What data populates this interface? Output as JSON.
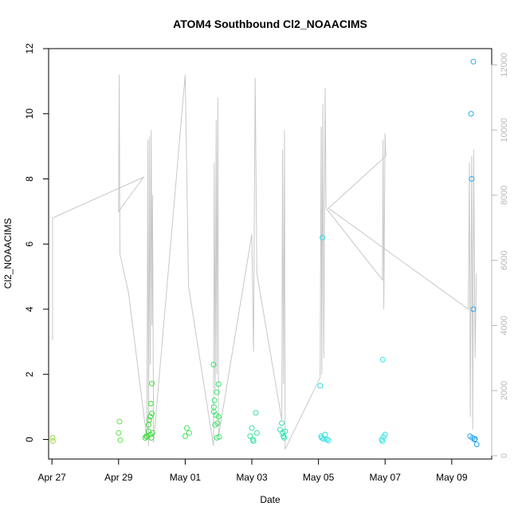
{
  "chart_data": {
    "type": "scatter",
    "title": "ATOM4 Southbound Cl2_NOAACIMS",
    "xlabel": "Date",
    "ylabel": "Cl2_NOAACIMS",
    "xlim": [
      -0.1,
      13.2
    ],
    "ylim": [
      -0.6,
      12.0
    ],
    "x_ticks": [
      {
        "label": "Apr 27",
        "value": 0
      },
      {
        "label": "Apr 29",
        "value": 2
      },
      {
        "label": "May 01",
        "value": 4
      },
      {
        "label": "May 03",
        "value": 6
      },
      {
        "label": "May 05",
        "value": 8
      },
      {
        "label": "May 07",
        "value": 10
      },
      {
        "label": "May 09",
        "value": 12
      }
    ],
    "y_ticks": [
      {
        "label": "0",
        "value": 0
      },
      {
        "label": "2",
        "value": 2
      },
      {
        "label": "4",
        "value": 4
      },
      {
        "label": "6",
        "value": 6
      },
      {
        "label": "8",
        "value": 8
      },
      {
        "label": "10",
        "value": 10
      },
      {
        "label": "12",
        "value": 12
      }
    ],
    "y2lim": [
      -100,
      12500
    ],
    "y2_ticks": [
      {
        "label": "0",
        "value": 0
      },
      {
        "label": "2000",
        "value": 2000
      },
      {
        "label": "4000",
        "value": 4000
      },
      {
        "label": "6000",
        "value": 6000
      },
      {
        "label": "8000",
        "value": 8000
      },
      {
        "label": "10000",
        "value": 10000
      },
      {
        "label": "12000",
        "value": 12000
      }
    ],
    "colors": {
      "altitude_line": "#c8c8c8",
      "right_axis": "#b8b8b8",
      "axis": "#000000"
    },
    "series": [
      {
        "name": "Cl2_NOAACIMS",
        "points": [
          {
            "x": 0.02,
            "y": 0.05,
            "c": "#9ad94a"
          },
          {
            "x": 0.03,
            "y": -0.05,
            "c": "#9ad94a"
          },
          {
            "x": 2.03,
            "y": 0.55,
            "c": "#5fe04a"
          },
          {
            "x": 2.0,
            "y": 0.2,
            "c": "#5fe04a"
          },
          {
            "x": 2.05,
            "y": -0.02,
            "c": "#5fe04a"
          },
          {
            "x": 2.8,
            "y": 0.05,
            "c": "#3fdc3f"
          },
          {
            "x": 2.83,
            "y": 0.1,
            "c": "#3fdc3f"
          },
          {
            "x": 2.86,
            "y": 0.08,
            "c": "#3fdc3f"
          },
          {
            "x": 2.9,
            "y": 0.25,
            "c": "#3fdc3f"
          },
          {
            "x": 2.9,
            "y": 0.45,
            "c": "#3fdc3f"
          },
          {
            "x": 2.92,
            "y": 0.6,
            "c": "#3fdc3f"
          },
          {
            "x": 2.95,
            "y": 0.7,
            "c": "#3fdc3f"
          },
          {
            "x": 2.97,
            "y": 1.1,
            "c": "#3fdc3f"
          },
          {
            "x": 3.0,
            "y": 1.72,
            "c": "#3fdc3f"
          },
          {
            "x": 3.0,
            "y": 0.8,
            "c": "#3fdc3f"
          },
          {
            "x": 2.95,
            "y": 0.15,
            "c": "#3fdc3f"
          },
          {
            "x": 3.02,
            "y": 0.2,
            "c": "#3fdc3f"
          },
          {
            "x": 2.98,
            "y": 0.05,
            "c": "#3fdc3f"
          },
          {
            "x": 4.05,
            "y": 0.35,
            "c": "#3ee35a"
          },
          {
            "x": 4.0,
            "y": 0.1,
            "c": "#3ee35a"
          },
          {
            "x": 4.12,
            "y": 0.2,
            "c": "#3ee35a"
          },
          {
            "x": 4.85,
            "y": 2.3,
            "c": "#35e46a"
          },
          {
            "x": 4.86,
            "y": 1.0,
            "c": "#35e46a"
          },
          {
            "x": 4.86,
            "y": 0.85,
            "c": "#35e46a"
          },
          {
            "x": 4.88,
            "y": 1.2,
            "c": "#35e46a"
          },
          {
            "x": 4.9,
            "y": 0.45,
            "c": "#35e46a"
          },
          {
            "x": 4.92,
            "y": 0.75,
            "c": "#35e46a"
          },
          {
            "x": 4.95,
            "y": 1.45,
            "c": "#35e46a"
          },
          {
            "x": 4.97,
            "y": 0.5,
            "c": "#35e46a"
          },
          {
            "x": 5.0,
            "y": 1.7,
            "c": "#35e46a"
          },
          {
            "x": 5.0,
            "y": 0.7,
            "c": "#35e46a"
          },
          {
            "x": 4.95,
            "y": 0.05,
            "c": "#35e46a"
          },
          {
            "x": 5.02,
            "y": 0.08,
            "c": "#35e46a"
          },
          {
            "x": 5.95,
            "y": 0.1,
            "c": "#35e0a0"
          },
          {
            "x": 6.0,
            "y": 0.35,
            "c": "#35e0a0"
          },
          {
            "x": 6.03,
            "y": 0.0,
            "c": "#35e0a0"
          },
          {
            "x": 6.05,
            "y": -0.05,
            "c": "#35e0a0"
          },
          {
            "x": 6.12,
            "y": 0.82,
            "c": "#35e0a0"
          },
          {
            "x": 6.15,
            "y": 0.2,
            "c": "#35e0a0"
          },
          {
            "x": 6.85,
            "y": 0.3,
            "c": "#30e0b0"
          },
          {
            "x": 6.9,
            "y": 0.5,
            "c": "#30e0b0"
          },
          {
            "x": 6.92,
            "y": 0.2,
            "c": "#30e0b0"
          },
          {
            "x": 6.95,
            "y": 0.1,
            "c": "#30e0b0"
          },
          {
            "x": 6.97,
            "y": 0.05,
            "c": "#30e0b0"
          },
          {
            "x": 7.0,
            "y": 0.25,
            "c": "#30e0b0"
          },
          {
            "x": 8.05,
            "y": 1.65,
            "c": "#30e0e0"
          },
          {
            "x": 8.08,
            "y": 0.1,
            "c": "#30e0e0"
          },
          {
            "x": 8.1,
            "y": 0.05,
            "c": "#30e0e0"
          },
          {
            "x": 8.12,
            "y": 6.2,
            "c": "#30e0e0"
          },
          {
            "x": 8.15,
            "y": 0.02,
            "c": "#30e0e0"
          },
          {
            "x": 8.2,
            "y": 0.15,
            "c": "#30e0e0"
          },
          {
            "x": 8.25,
            "y": 0.0,
            "c": "#30e0e0"
          },
          {
            "x": 8.3,
            "y": -0.03,
            "c": "#30e0e0"
          },
          {
            "x": 9.93,
            "y": 2.45,
            "c": "#30e6e6"
          },
          {
            "x": 9.9,
            "y": 0.0,
            "c": "#30e6e6"
          },
          {
            "x": 9.95,
            "y": 0.08,
            "c": "#30e6e6"
          },
          {
            "x": 10.0,
            "y": 0.15,
            "c": "#30e6e6"
          },
          {
            "x": 9.92,
            "y": -0.05,
            "c": "#30e6e6"
          },
          {
            "x": 12.55,
            "y": 0.1,
            "c": "#28a8ef"
          },
          {
            "x": 12.58,
            "y": 10.0,
            "c": "#28a8ef"
          },
          {
            "x": 12.6,
            "y": 8.0,
            "c": "#28a8ef"
          },
          {
            "x": 12.65,
            "y": 11.6,
            "c": "#28a8ef"
          },
          {
            "x": 12.65,
            "y": 4.0,
            "c": "#28a8ef"
          },
          {
            "x": 12.62,
            "y": 0.05,
            "c": "#28a8ef"
          },
          {
            "x": 12.7,
            "y": 0.02,
            "c": "#28a8ef"
          },
          {
            "x": 12.75,
            "y": -0.15,
            "c": "#28a8ef"
          },
          {
            "x": 12.68,
            "y": 0.0,
            "c": "#28a8ef"
          }
        ]
      }
    ],
    "altitude_line": [
      {
        "x": 0.02,
        "a": 3550
      },
      {
        "x": 0.02,
        "a": 7300
      },
      {
        "x": 2.75,
        "a": 8550
      },
      {
        "x": 2.0,
        "a": 7500
      },
      {
        "x": 2.02,
        "a": 11700
      },
      {
        "x": 2.04,
        "a": 6200
      },
      {
        "x": 2.3,
        "a": 5000
      },
      {
        "x": 2.85,
        "a": 500
      },
      {
        "x": 2.88,
        "a": 9700
      },
      {
        "x": 2.9,
        "a": 300
      },
      {
        "x": 2.93,
        "a": 9800
      },
      {
        "x": 2.95,
        "a": 2800
      },
      {
        "x": 2.98,
        "a": 10000
      },
      {
        "x": 3.0,
        "a": 4000
      },
      {
        "x": 3.02,
        "a": 8000
      },
      {
        "x": 3.05,
        "a": 400
      },
      {
        "x": 4.0,
        "a": 11700
      },
      {
        "x": 4.1,
        "a": 5200
      },
      {
        "x": 4.85,
        "a": 300
      },
      {
        "x": 4.87,
        "a": 9000
      },
      {
        "x": 4.9,
        "a": 2000
      },
      {
        "x": 4.93,
        "a": 10300
      },
      {
        "x": 4.95,
        "a": 2500
      },
      {
        "x": 4.98,
        "a": 11000
      },
      {
        "x": 5.0,
        "a": 600
      },
      {
        "x": 6.0,
        "a": 6800
      },
      {
        "x": 6.05,
        "a": 3200
      },
      {
        "x": 6.1,
        "a": 11600
      },
      {
        "x": 6.15,
        "a": 5600
      },
      {
        "x": 6.9,
        "a": 1100
      },
      {
        "x": 6.92,
        "a": 9400
      },
      {
        "x": 6.95,
        "a": 2200
      },
      {
        "x": 6.98,
        "a": 10000
      },
      {
        "x": 7.0,
        "a": 200
      },
      {
        "x": 8.05,
        "a": 2400
      },
      {
        "x": 8.08,
        "a": 10100
      },
      {
        "x": 8.1,
        "a": 2500
      },
      {
        "x": 8.13,
        "a": 10800
      },
      {
        "x": 8.16,
        "a": 3000
      },
      {
        "x": 8.2,
        "a": 11300
      },
      {
        "x": 8.23,
        "a": 7600
      },
      {
        "x": 9.92,
        "a": 5400
      },
      {
        "x": 9.94,
        "a": 9700
      },
      {
        "x": 9.96,
        "a": 4500
      },
      {
        "x": 10.0,
        "a": 9900
      },
      {
        "x": 10.02,
        "a": 9200
      },
      {
        "x": 8.3,
        "a": 7600
      },
      {
        "x": 12.5,
        "a": 4500
      },
      {
        "x": 12.53,
        "a": 9000
      },
      {
        "x": 12.56,
        "a": 1200
      },
      {
        "x": 12.6,
        "a": 9200
      },
      {
        "x": 12.63,
        "a": 800
      },
      {
        "x": 12.66,
        "a": 9400
      },
      {
        "x": 12.7,
        "a": 3000
      },
      {
        "x": 12.74,
        "a": 5600
      }
    ]
  }
}
